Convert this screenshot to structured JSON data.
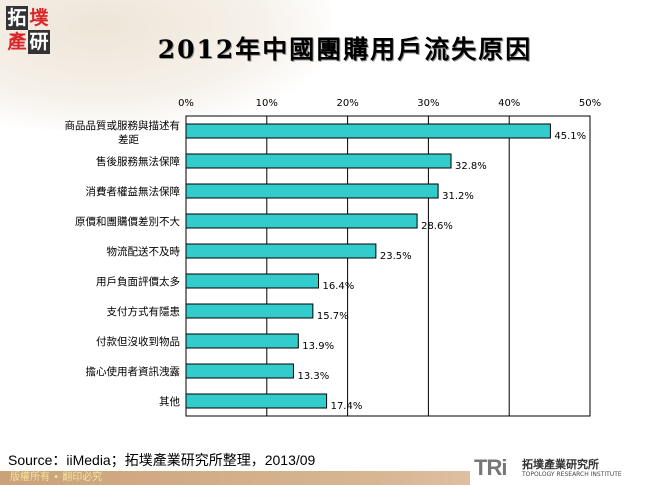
{
  "logo": {
    "chars": [
      "拓",
      "墣",
      "產",
      "研"
    ]
  },
  "chart_data": {
    "type": "bar",
    "orientation": "horizontal",
    "title": "2012年中國團購用戶流失原因",
    "categories": [
      "商品品質或服務與描述有差距",
      "售後服務無法保障",
      "消費者權益無法保障",
      "原價和團購價差別不大",
      "物流配送不及時",
      "用戶負面評價太多",
      "支付方式有隱患",
      "付款但沒收到物品",
      "擔心使用者資訊洩露",
      "其他"
    ],
    "values": [
      45.1,
      32.8,
      31.2,
      28.6,
      23.5,
      16.4,
      15.7,
      13.9,
      13.3,
      17.4
    ],
    "data_labels": [
      "45.1%",
      "32.8%",
      "31.2%",
      "28.6%",
      "23.5%",
      "16.4%",
      "15.7%",
      "13.9%",
      "13.3%",
      "17.4%"
    ],
    "xlim": [
      0,
      50
    ],
    "ticks": [
      "0%",
      "10%",
      "20%",
      "30%",
      "40%",
      "50%"
    ],
    "axis_position": "top",
    "grid": true,
    "bar_color": "#33cccc"
  },
  "source": "Source：iiMedia；拓墣產業研究所整理，2013/09",
  "footer": {
    "copyright": "版權所有 • 翻印必究",
    "brand_mark": "TRi",
    "brand_cn": "拓墣產業研究所",
    "brand_en": "TOPOLOGY RESEARCH INSTITUTE"
  }
}
